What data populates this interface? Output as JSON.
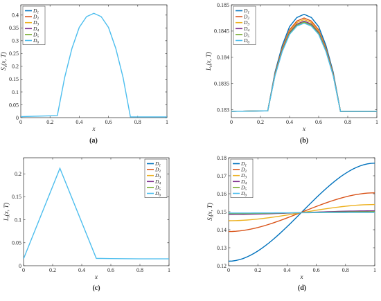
{
  "chart_data": [
    {
      "id": "a",
      "type": "line",
      "caption": "(a)",
      "xlabel": "x",
      "ylabel": "S_s(x, T)",
      "xlim": [
        0,
        1
      ],
      "ylim": [
        0,
        0.44
      ],
      "xticks": [
        "0",
        "0.2",
        "0.4",
        "0.6",
        "0.8",
        "1"
      ],
      "yticks": [
        "0",
        "0.05",
        "0.1",
        "0.15",
        "0.2",
        "0.25",
        "0.3",
        "0.35",
        "0.4"
      ],
      "legend": "top-left",
      "series": [
        {
          "name": "D1",
          "color": "#0072BD"
        },
        {
          "name": "D2",
          "color": "#D95319"
        },
        {
          "name": "D3",
          "color": "#EDB120"
        },
        {
          "name": "D4",
          "color": "#7E2F8E"
        },
        {
          "name": "D5",
          "color": "#77AC30"
        },
        {
          "name": "D6",
          "color": "#4DBEEE",
          "x": [
            0,
            0.25,
            0.3,
            0.35,
            0.4,
            0.45,
            0.5,
            0.55,
            0.6,
            0.65,
            0.7,
            0.75,
            1
          ],
          "y": [
            0.004,
            0.008,
            0.156,
            0.27,
            0.352,
            0.394,
            0.407,
            0.394,
            0.352,
            0.27,
            0.156,
            0.003,
            0.003
          ]
        }
      ]
    },
    {
      "id": "b",
      "type": "line",
      "caption": "(b)",
      "xlabel": "x",
      "ylabel": "L_s(x, T)",
      "xlim": [
        0,
        1
      ],
      "ylim": [
        0.18285,
        0.185
      ],
      "xticks": [
        "0",
        "0.2",
        "0.4",
        "0.6",
        "0.8",
        "1"
      ],
      "yticks": [
        "0.183",
        "0.1835",
        "0.184",
        "0.1845",
        "0.185"
      ],
      "legend": "top-left",
      "series": [
        {
          "name": "D1",
          "color": "#0072BD",
          "peak": 0.18482
        },
        {
          "name": "D2",
          "color": "#D95319",
          "peak": 0.18475
        },
        {
          "name": "D3",
          "color": "#EDB120",
          "peak": 0.18472
        },
        {
          "name": "D4",
          "color": "#7E2F8E",
          "peak": 0.18469
        },
        {
          "name": "D5",
          "color": "#77AC30",
          "peak": 0.18467
        },
        {
          "name": "D6",
          "color": "#4DBEEE",
          "peak": 0.18465
        }
      ],
      "base_x": [
        0,
        0.25,
        0.3,
        0.35,
        0.4,
        0.45,
        0.5,
        0.55,
        0.6,
        0.65,
        0.7,
        0.75,
        1
      ],
      "base_y": [
        0.18297,
        0.18298,
        0.1837,
        0.1842,
        0.18455,
        0.18472,
        0.18478,
        0.18472,
        0.18455,
        0.1842,
        0.1837,
        0.18297,
        0.18297
      ]
    },
    {
      "id": "c",
      "type": "line",
      "caption": "(c)",
      "xlabel": "x",
      "ylabel": "L_i(x, T)",
      "xlim": [
        0,
        1
      ],
      "ylim": [
        0,
        0.235
      ],
      "xticks": [
        "0",
        "0.2",
        "0.4",
        "0.6",
        "0.8",
        "1"
      ],
      "yticks": [
        "0",
        "0.05",
        "0.1",
        "0.15",
        "0.2"
      ],
      "legend": "top-right",
      "series": [
        {
          "name": "D1",
          "color": "#0072BD"
        },
        {
          "name": "D2",
          "color": "#D95319"
        },
        {
          "name": "D3",
          "color": "#EDB120"
        },
        {
          "name": "D4",
          "color": "#7E2F8E"
        },
        {
          "name": "D5",
          "color": "#77AC30"
        },
        {
          "name": "D6",
          "color": "#4DBEEE",
          "x": [
            0,
            0.25,
            0.5,
            0.6,
            0.8,
            1
          ],
          "y": [
            0.015,
            0.212,
            0.016,
            0.0155,
            0.015,
            0.015
          ]
        }
      ]
    },
    {
      "id": "d",
      "type": "line",
      "caption": "(d)",
      "xlabel": "x",
      "ylabel": "S_i(x, T)",
      "xlim": [
        0,
        1
      ],
      "ylim": [
        0.12,
        0.18
      ],
      "xticks": [
        "0",
        "0.2",
        "0.4",
        "0.6",
        "0.8",
        "1"
      ],
      "yticks": [
        "0.12",
        "0.13",
        "0.14",
        "0.15",
        "0.16",
        "0.17",
        "0.18"
      ],
      "legend": "top-left",
      "series": [
        {
          "name": "D1",
          "color": "#0072BD",
          "y0": 0.1225,
          "y1": 0.177
        },
        {
          "name": "D2",
          "color": "#D95319",
          "y0": 0.139,
          "y1": 0.1605
        },
        {
          "name": "D3",
          "color": "#EDB120",
          "y0": 0.145,
          "y1": 0.154
        },
        {
          "name": "D4",
          "color": "#7E2F8E",
          "y0": 0.1485,
          "y1": 0.1505
        },
        {
          "name": "D5",
          "color": "#77AC30",
          "y0": 0.149,
          "y1": 0.15
        },
        {
          "name": "D6",
          "color": "#4DBEEE",
          "y0": 0.1493,
          "y1": 0.1496
        }
      ]
    }
  ]
}
